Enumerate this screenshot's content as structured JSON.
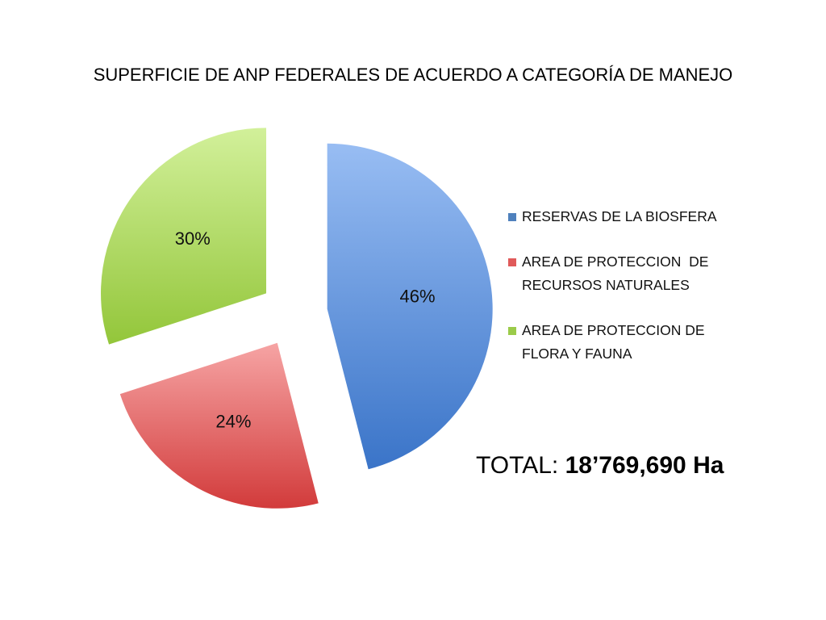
{
  "chart_data": {
    "type": "pie",
    "title": "SUPERFICIE DE ANP FEDERALES DE ACUERDO A CATEGORÍA DE MANEJO",
    "slices": [
      {
        "name": "RESERVAS DE LA BIOSFERA",
        "value": 46,
        "label": "46%",
        "color_top": "#98bdf3",
        "color_bottom": "#3a74c8"
      },
      {
        "name": "AREA DE PROTECCION  DE RECURSOS NATURALES",
        "value": 24,
        "label": "24%",
        "color_top": "#f6a4a4",
        "color_bottom": "#d23b3b"
      },
      {
        "name": "AREA DE PROTECCION DE FLORA Y FAUNA",
        "value": 30,
        "label": "30%",
        "color_top": "#d2f09a",
        "color_bottom": "#93c63a"
      }
    ],
    "legend_position": "right",
    "exploded": true
  },
  "total": {
    "label": "TOTAL:",
    "value": "18’769,690 Ha"
  }
}
